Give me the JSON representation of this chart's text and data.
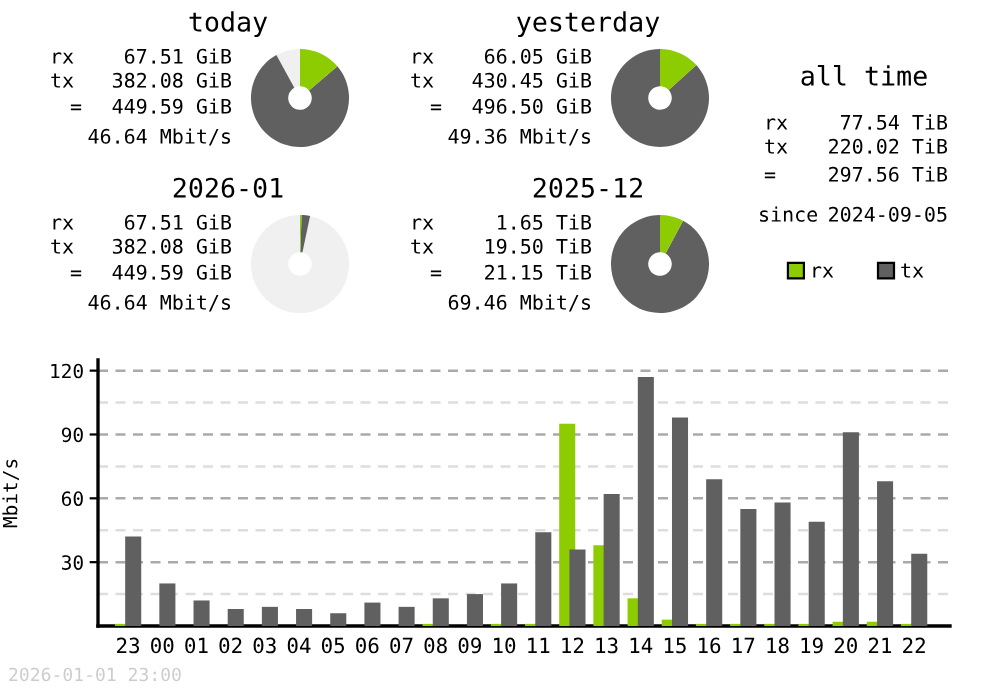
{
  "chart_data": [
    {
      "type": "donut",
      "title": "today",
      "categories": [
        null,
        null,
        null
      ],
      "values": [
        13.8,
        78.2,
        8.0
      ],
      "colors": [
        "#8ccc00",
        "#606060",
        "#f0f0f0"
      ],
      "annotations": [
        "rx 67.51 GiB",
        "tx 382.08 GiB",
        "= 449.59 GiB",
        "46.64 Mbit/s"
      ]
    },
    {
      "type": "donut",
      "title": "yesterday",
      "categories": [
        null,
        null
      ],
      "values": [
        13.3,
        86.7
      ],
      "colors": [
        "#8ccc00",
        "#606060"
      ],
      "annotations": [
        "rx 66.05 GiB",
        "tx 430.45 GiB",
        "= 496.50 GiB",
        "49.36 Mbit/s"
      ]
    },
    {
      "type": "other",
      "title": "all time",
      "annotations": [
        "rx 77.54 TiB",
        "tx 220.02 TiB",
        "= 297.56 TiB",
        "since 2024-09-05"
      ]
    },
    {
      "type": "donut",
      "title": "2026-01",
      "categories": [
        null,
        null,
        null
      ],
      "values": [
        0.5,
        2.8,
        96.7
      ],
      "colors": [
        "#8ccc00",
        "#606060",
        "#f0f0f0"
      ],
      "annotations": [
        "rx 67.51 GiB",
        "tx 382.08 GiB",
        "= 449.59 GiB",
        "46.64 Mbit/s"
      ]
    },
    {
      "type": "donut",
      "title": "2025-12",
      "categories": [
        null,
        null
      ],
      "values": [
        7.8,
        92.2
      ],
      "colors": [
        "#8ccc00",
        "#606060"
      ],
      "annotations": [
        "rx 1.65 TiB",
        "tx 19.50 TiB",
        "= 21.15 TiB",
        "69.46 Mbit/s"
      ]
    },
    {
      "type": "bar",
      "ylabel": "Mbit/s",
      "categories": [
        "23",
        "00",
        "01",
        "02",
        "03",
        "04",
        "05",
        "06",
        "07",
        "08",
        "09",
        "10",
        "11",
        "12",
        "13",
        "14",
        "15",
        "16",
        "17",
        "18",
        "19",
        "20",
        "21",
        "22"
      ],
      "series": [
        {
          "name": "rx",
          "color": "#8ccc00",
          "values": [
            1,
            0,
            0,
            0,
            0,
            0,
            0,
            0,
            0,
            1,
            0,
            1,
            1,
            95,
            38,
            13,
            3,
            1,
            1,
            1,
            1,
            2,
            2,
            1
          ]
        },
        {
          "name": "tx",
          "color": "#606060",
          "values": [
            42,
            20,
            12,
            8,
            9,
            8,
            6,
            11,
            9,
            13,
            15,
            20,
            44,
            36,
            62,
            117,
            98,
            69,
            55,
            58,
            49,
            91,
            68,
            34
          ]
        }
      ],
      "ylim": [
        0,
        125
      ],
      "yticks": [
        {
          "value": 15,
          "label": null
        },
        30,
        {
          "value": 45,
          "label": null
        },
        60,
        {
          "value": 75,
          "label": null
        },
        90,
        {
          "value": 105,
          "label": null
        },
        120
      ],
      "grid": "y",
      "legend": "top right",
      "annotations": [
        "2026-01-01 23:00"
      ]
    }
  ]
}
